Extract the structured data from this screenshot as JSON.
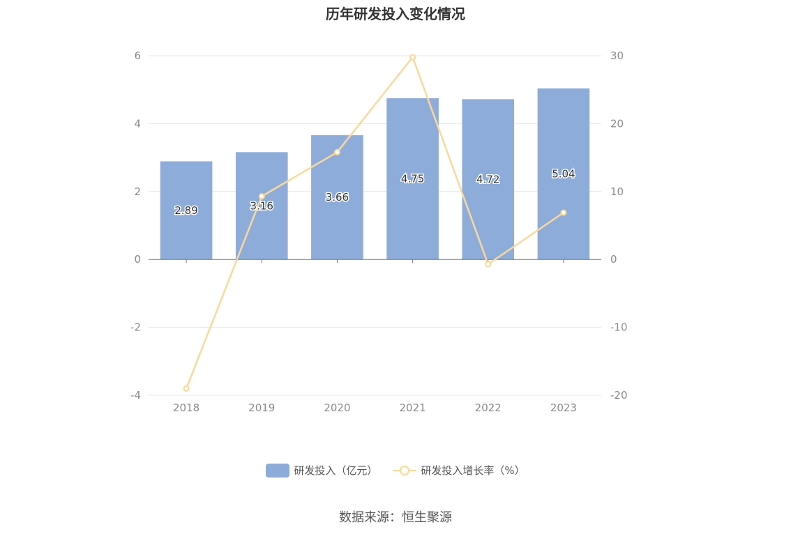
{
  "title": "历年研发投入变化情况",
  "source": "数据来源：恒生聚源",
  "colors": {
    "bar": "#8eacd9",
    "line": "#fbd89a",
    "grid": "#e3e6f3",
    "axis": "#777777"
  },
  "chart_data": {
    "type": "bar",
    "categories": [
      "2018",
      "2019",
      "2020",
      "2021",
      "2022",
      "2023"
    ],
    "series": [
      {
        "name": "研发投入（亿元）",
        "type": "bar",
        "axis": "left",
        "values": [
          2.89,
          3.16,
          3.66,
          4.75,
          4.72,
          5.04
        ],
        "labels": [
          "2.89",
          "3.16",
          "3.66",
          "4.75",
          "4.72",
          "5.04"
        ]
      },
      {
        "name": "研发投入增长率（%）",
        "type": "line",
        "axis": "right",
        "values": [
          -19.0,
          9.3,
          15.8,
          29.8,
          -0.7,
          6.9
        ]
      }
    ],
    "y_left": {
      "ticks": [
        "-4",
        "-2",
        "0",
        "2",
        "4",
        "6"
      ],
      "range": [
        -4,
        6
      ]
    },
    "y_right": {
      "ticks": [
        "-20",
        "-10",
        "0",
        "10",
        "20",
        "30"
      ],
      "range": [
        -20,
        30
      ]
    },
    "grid": true,
    "legend": "bottom-center"
  }
}
